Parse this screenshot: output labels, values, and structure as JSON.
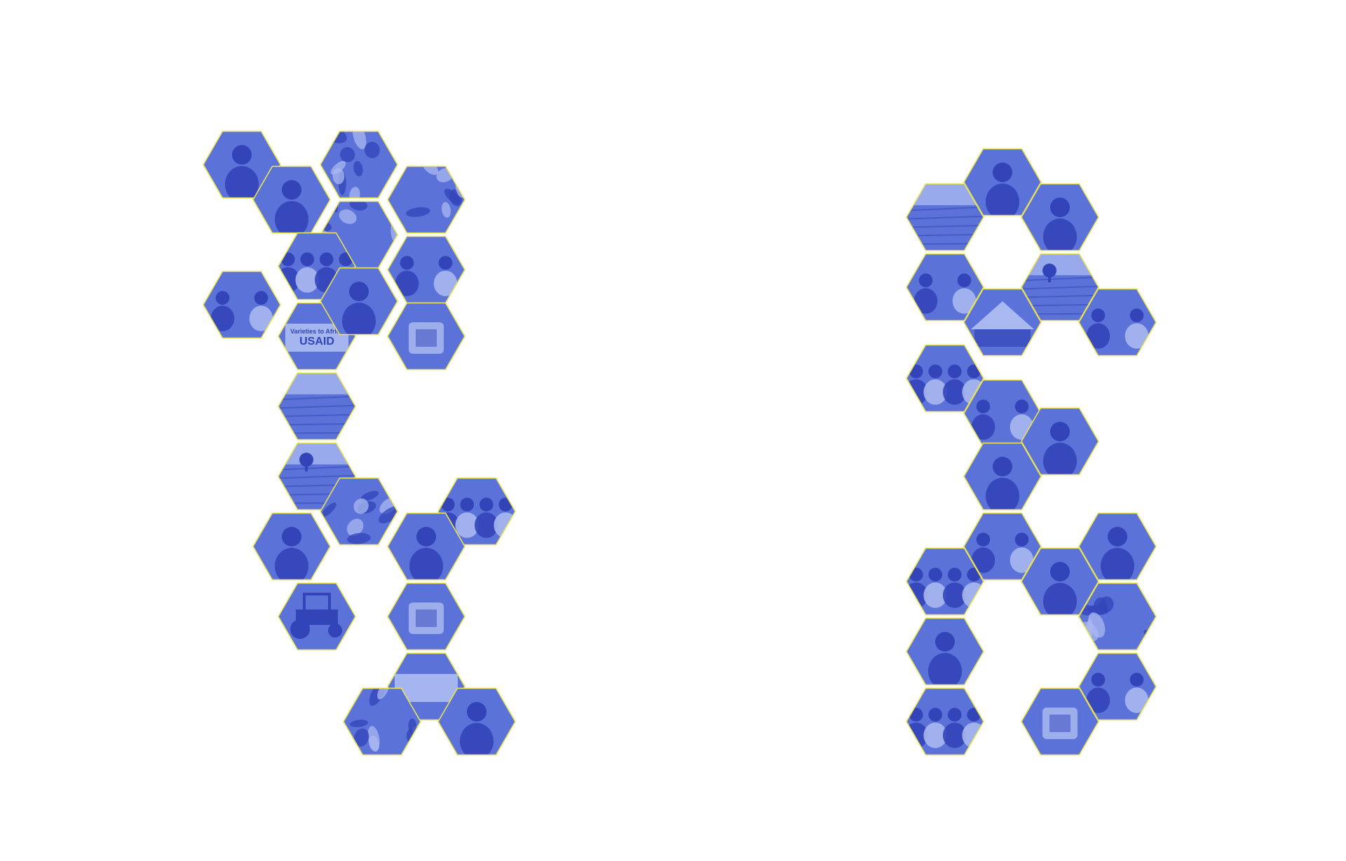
{
  "palette": {
    "photo_fill": "#5b72d9",
    "photo_light": "#a9b8f0",
    "photo_dark": "#3244b8",
    "outline": "#e9e255",
    "background": "#ffffff"
  },
  "tiles": [
    {
      "name": "hex-photo-person-portrait",
      "subject": "person-portrait"
    },
    {
      "name": "hex-photo-woman-doorway",
      "subject": "person-doorway"
    },
    {
      "name": "hex-photo-leaves",
      "subject": "leaves"
    },
    {
      "name": "hex-photo-leaves",
      "subject": "leaves"
    },
    {
      "name": "hex-photo-leaves",
      "subject": "leaves"
    },
    {
      "name": "hex-photo-group-field",
      "subject": "group"
    },
    {
      "name": "hex-photo-women-basket",
      "subject": "people"
    },
    {
      "name": "hex-photo-men-waving",
      "subject": "people"
    },
    {
      "name": "hex-photo-usaid-banner",
      "subject": "banner",
      "banner_text": "USAID",
      "banner_subtext": "Varieties to Africa"
    },
    {
      "name": "hex-photo-man-field",
      "subject": "person-field"
    },
    {
      "name": "hex-photo-seed-tray",
      "subject": "object"
    },
    {
      "name": "hex-photo-field",
      "subject": "field"
    },
    {
      "name": "hex-photo-field-tree",
      "subject": "field-tree"
    },
    {
      "name": "hex-photo-crop-stalks",
      "subject": "leaves"
    },
    {
      "name": "hex-photo-crowd",
      "subject": "group"
    },
    {
      "name": "hex-photo-woman-headwrap",
      "subject": "person-portrait"
    },
    {
      "name": "hex-photo-man-portrait",
      "subject": "person-portrait"
    },
    {
      "name": "hex-photo-tractor",
      "subject": "tractor"
    },
    {
      "name": "hex-photo-lab-flask",
      "subject": "object"
    },
    {
      "name": "hex-photo-signboard",
      "subject": "banner"
    },
    {
      "name": "hex-photo-plants-sign",
      "subject": "leaves"
    },
    {
      "name": "hex-photo-boy-portrait",
      "subject": "person-portrait"
    },
    {
      "name": "hex-photo-field",
      "subject": "field"
    },
    {
      "name": "hex-photo-man-field",
      "subject": "person-field"
    },
    {
      "name": "hex-photo-woman-portrait",
      "subject": "person-portrait"
    },
    {
      "name": "hex-photo-women-group",
      "subject": "people"
    },
    {
      "name": "hex-photo-field-tree",
      "subject": "field-tree"
    },
    {
      "name": "hex-photo-tent",
      "subject": "tent"
    },
    {
      "name": "hex-photo-students",
      "subject": "people"
    },
    {
      "name": "hex-photo-group-seated",
      "subject": "group"
    },
    {
      "name": "hex-photo-men-talking",
      "subject": "people"
    },
    {
      "name": "hex-photo-worker-crouching",
      "subject": "person-field"
    },
    {
      "name": "hex-photo-farmer-bending",
      "subject": "person-field"
    },
    {
      "name": "hex-photo-men-meeting",
      "subject": "people"
    },
    {
      "name": "hex-photo-crowd-field",
      "subject": "group"
    },
    {
      "name": "hex-photo-man-cap",
      "subject": "person-portrait"
    },
    {
      "name": "hex-photo-man-working",
      "subject": "person-portrait"
    },
    {
      "name": "hex-photo-man-plants",
      "subject": "person-field"
    },
    {
      "name": "hex-photo-man-hat",
      "subject": "person-portrait"
    },
    {
      "name": "hex-photo-people-plants",
      "subject": "group"
    },
    {
      "name": "hex-photo-market",
      "subject": "object"
    },
    {
      "name": "hex-photo-woman-bowl",
      "subject": "people"
    },
    {
      "name": "hex-photo-crops-harvest",
      "subject": "leaves"
    }
  ]
}
